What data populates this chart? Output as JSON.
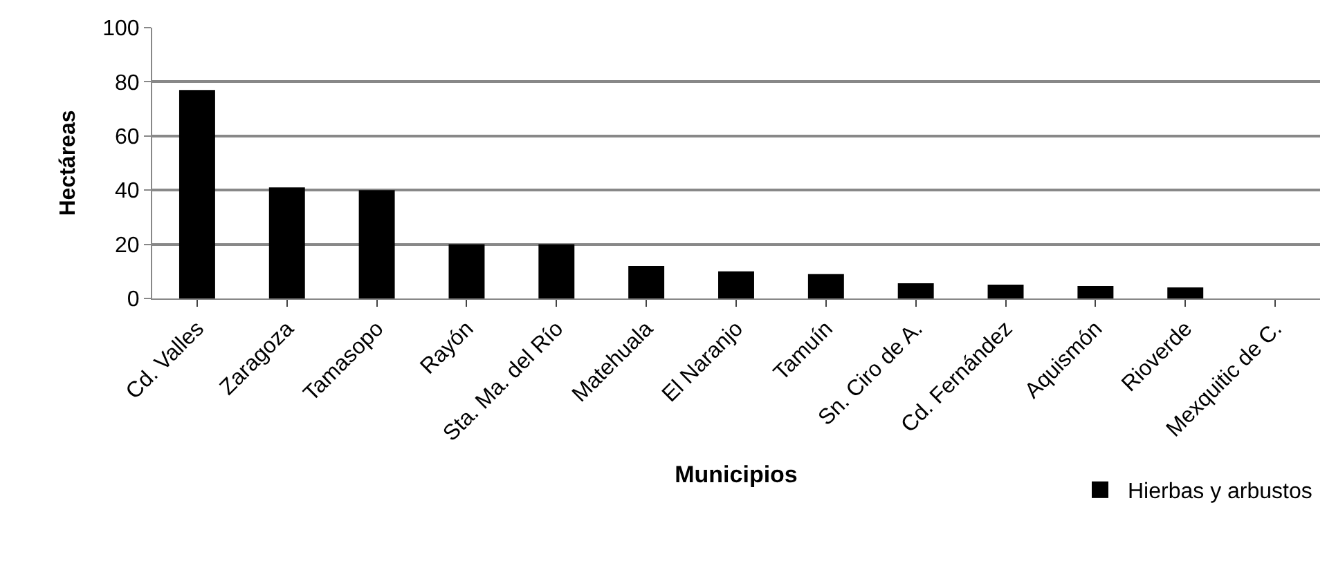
{
  "chart_data": {
    "type": "bar",
    "xlabel": "Municipios",
    "ylabel": "Hectáreas",
    "categories": [
      "Cd. Valles",
      "Zaragoza",
      "Tamasopo",
      "Rayón",
      "Sta. Ma. del Río",
      "Matehuala",
      "El Naranjo",
      "Tamuín",
      "Sn. Ciro de A.",
      "Cd. Fernández",
      "Aquismón",
      "Rioverde",
      "Mexquitic de C."
    ],
    "series": [
      {
        "name": "Hierbas y arbustos",
        "color": "#000000",
        "values": [
          77,
          41,
          40,
          20,
          20,
          12,
          10,
          9,
          5.6,
          5.1,
          4.6,
          4.1,
          0
        ]
      }
    ],
    "ylim": [
      0,
      100
    ],
    "yticks": [
      0,
      20,
      40,
      60,
      80,
      100
    ],
    "grid": "y",
    "legend": "bottom right"
  }
}
